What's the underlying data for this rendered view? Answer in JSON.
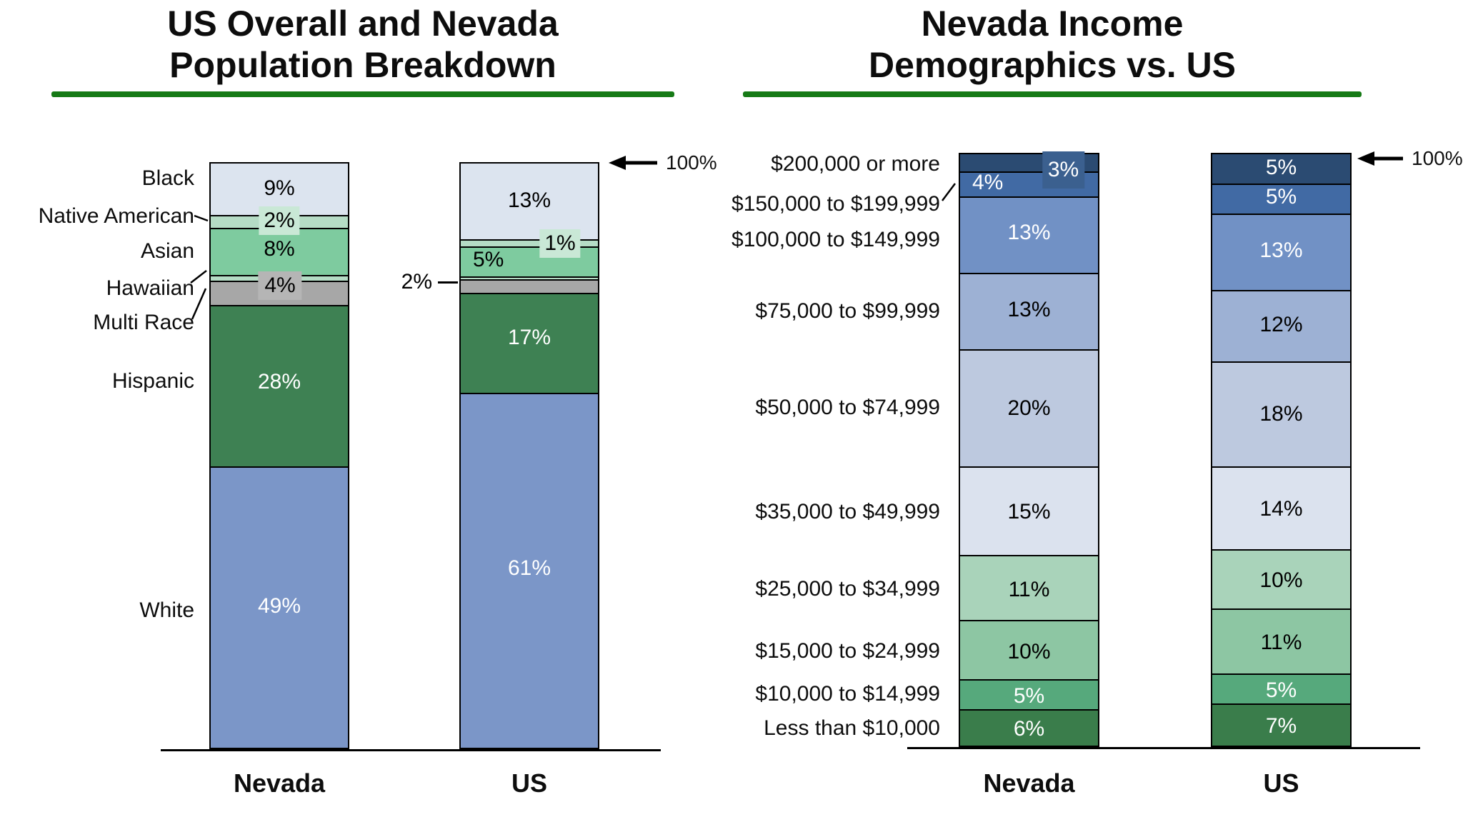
{
  "styles": {
    "background": "#ffffff",
    "accent_green": "#167a16",
    "segment_border": "#000000",
    "chip_green": "#c9e8d6",
    "chip_gray": "#b5b5b5",
    "chip_navy": "#3b608f",
    "text_dark": "#0d0d0d"
  },
  "chart_data": [
    {
      "type": "bar",
      "subtype": "stacked-100-percent-column",
      "title": "US Overall and Nevada Population Breakdown",
      "title_lines": [
        "US Overall and Nevada",
        "Population Breakdown"
      ],
      "x_labels": [
        "Nevada",
        "US"
      ],
      "axis_annotation": "100%",
      "ylim": [
        0,
        100
      ],
      "grid": false,
      "legend": "category labels at left of first bar",
      "segments_top_to_bottom": [
        {
          "category": "Black",
          "values": [
            9,
            13
          ],
          "value_labels": [
            "9%",
            "13%"
          ],
          "color": "#dce4ef",
          "label_styles": [
            "inside",
            "inside"
          ],
          "label_colors": [
            "#000000",
            "#000000"
          ]
        },
        {
          "category": "Native American",
          "values": [
            2,
            1
          ],
          "value_labels": [
            "2%",
            "1%"
          ],
          "color": "#b5dcc5",
          "label_styles": [
            "chip-green",
            "chip-green-right"
          ],
          "label_colors": [
            "#000000",
            "#000000"
          ]
        },
        {
          "category": "Asian",
          "values": [
            8,
            5
          ],
          "value_labels": [
            "8%",
            "5%"
          ],
          "color": "#7ecb9f",
          "label_styles": [
            "inside",
            "inside-left"
          ],
          "label_colors": [
            "#000000",
            "#000000"
          ]
        },
        {
          "category": "Hawaiian",
          "values": [
            0.7,
            0.25
          ],
          "value_labels": [
            "",
            ""
          ],
          "color": "#b5dcc5",
          "label_styles": [
            "none",
            "none"
          ],
          "label_colors": [
            "#000000",
            "#000000"
          ]
        },
        {
          "category": "Multi Race",
          "values": [
            4,
            2
          ],
          "value_labels": [
            "4%",
            "2%"
          ],
          "color": "#a7a7a7",
          "label_styles": [
            "chip-gray",
            "outside-left"
          ],
          "label_colors": [
            "#000000",
            "#000000"
          ]
        },
        {
          "category": "Hispanic",
          "values": [
            28,
            17
          ],
          "value_labels": [
            "28%",
            "17%"
          ],
          "color": "#3e8153",
          "label_styles": [
            "inside",
            "inside"
          ],
          "label_colors": [
            "#ffffff",
            "#ffffff"
          ]
        },
        {
          "category": "White",
          "values": [
            49,
            61
          ],
          "value_labels": [
            "49%",
            "61%"
          ],
          "color": "#7b96c8",
          "label_styles": [
            "inside",
            "inside"
          ],
          "label_colors": [
            "#ffffff",
            "#ffffff"
          ]
        }
      ]
    },
    {
      "type": "bar",
      "subtype": "stacked-100-percent-column",
      "title": "Nevada Income Demographics vs. US",
      "title_lines": [
        "Nevada Income",
        "Demographics vs. US"
      ],
      "x_labels": [
        "Nevada",
        "US"
      ],
      "axis_annotation": "100%",
      "ylim": [
        0,
        100
      ],
      "grid": false,
      "legend": "income bracket labels at left of first bar",
      "segments_top_to_bottom": [
        {
          "category": "$200,000 or more",
          "values": [
            3,
            5
          ],
          "value_labels": [
            "3%",
            "5%"
          ],
          "color": "#2b4b72",
          "label_styles": [
            "chip-navy",
            "inside"
          ],
          "label_colors": [
            "#ffffff",
            "#ffffff"
          ]
        },
        {
          "category": "$150,000 to $199,999",
          "values": [
            4,
            5
          ],
          "value_labels": [
            "4%",
            "5%"
          ],
          "color": "#416aa4",
          "label_styles": [
            "inside-left",
            "inside"
          ],
          "label_colors": [
            "#ffffff",
            "#ffffff"
          ]
        },
        {
          "category": "$100,000 to $149,999",
          "values": [
            13,
            13
          ],
          "value_labels": [
            "13%",
            "13%"
          ],
          "color": "#7191c5",
          "label_styles": [
            "inside",
            "inside"
          ],
          "label_colors": [
            "#ffffff",
            "#ffffff"
          ]
        },
        {
          "category": "$75,000 to $99,999",
          "values": [
            13,
            12
          ],
          "value_labels": [
            "13%",
            "12%"
          ],
          "color": "#9db1d4",
          "label_styles": [
            "inside",
            "inside"
          ],
          "label_colors": [
            "#000000",
            "#000000"
          ]
        },
        {
          "category": "$50,000 to $74,999",
          "values": [
            20,
            18
          ],
          "value_labels": [
            "20%",
            "18%"
          ],
          "color": "#bdc9df",
          "label_styles": [
            "inside",
            "inside"
          ],
          "label_colors": [
            "#000000",
            "#000000"
          ]
        },
        {
          "category": "$35,000 to $49,999",
          "values": [
            15,
            14
          ],
          "value_labels": [
            "15%",
            "14%"
          ],
          "color": "#dbe2ee",
          "label_styles": [
            "inside",
            "inside"
          ],
          "label_colors": [
            "#000000",
            "#000000"
          ]
        },
        {
          "category": "$25,000 to $34,999",
          "values": [
            11,
            10
          ],
          "value_labels": [
            "11%",
            "10%"
          ],
          "color": "#a9d3ba",
          "label_styles": [
            "inside",
            "inside"
          ],
          "label_colors": [
            "#000000",
            "#000000"
          ]
        },
        {
          "category": "$15,000 to $24,999",
          "values": [
            10,
            11
          ],
          "value_labels": [
            "10%",
            "11%"
          ],
          "color": "#8dc6a3",
          "label_styles": [
            "inside",
            "inside"
          ],
          "label_colors": [
            "#000000",
            "#000000"
          ]
        },
        {
          "category": "$10,000 to $14,999",
          "values": [
            5,
            5
          ],
          "value_labels": [
            "5%",
            "5%"
          ],
          "color": "#56a97c",
          "label_styles": [
            "inside",
            "inside"
          ],
          "label_colors": [
            "#ffffff",
            "#ffffff"
          ]
        },
        {
          "category": "Less than $10,000",
          "values": [
            6,
            7
          ],
          "value_labels": [
            "6%",
            "7%"
          ],
          "color": "#3a7d4b",
          "label_styles": [
            "inside",
            "inside"
          ],
          "label_colors": [
            "#ffffff",
            "#ffffff"
          ]
        }
      ]
    }
  ]
}
